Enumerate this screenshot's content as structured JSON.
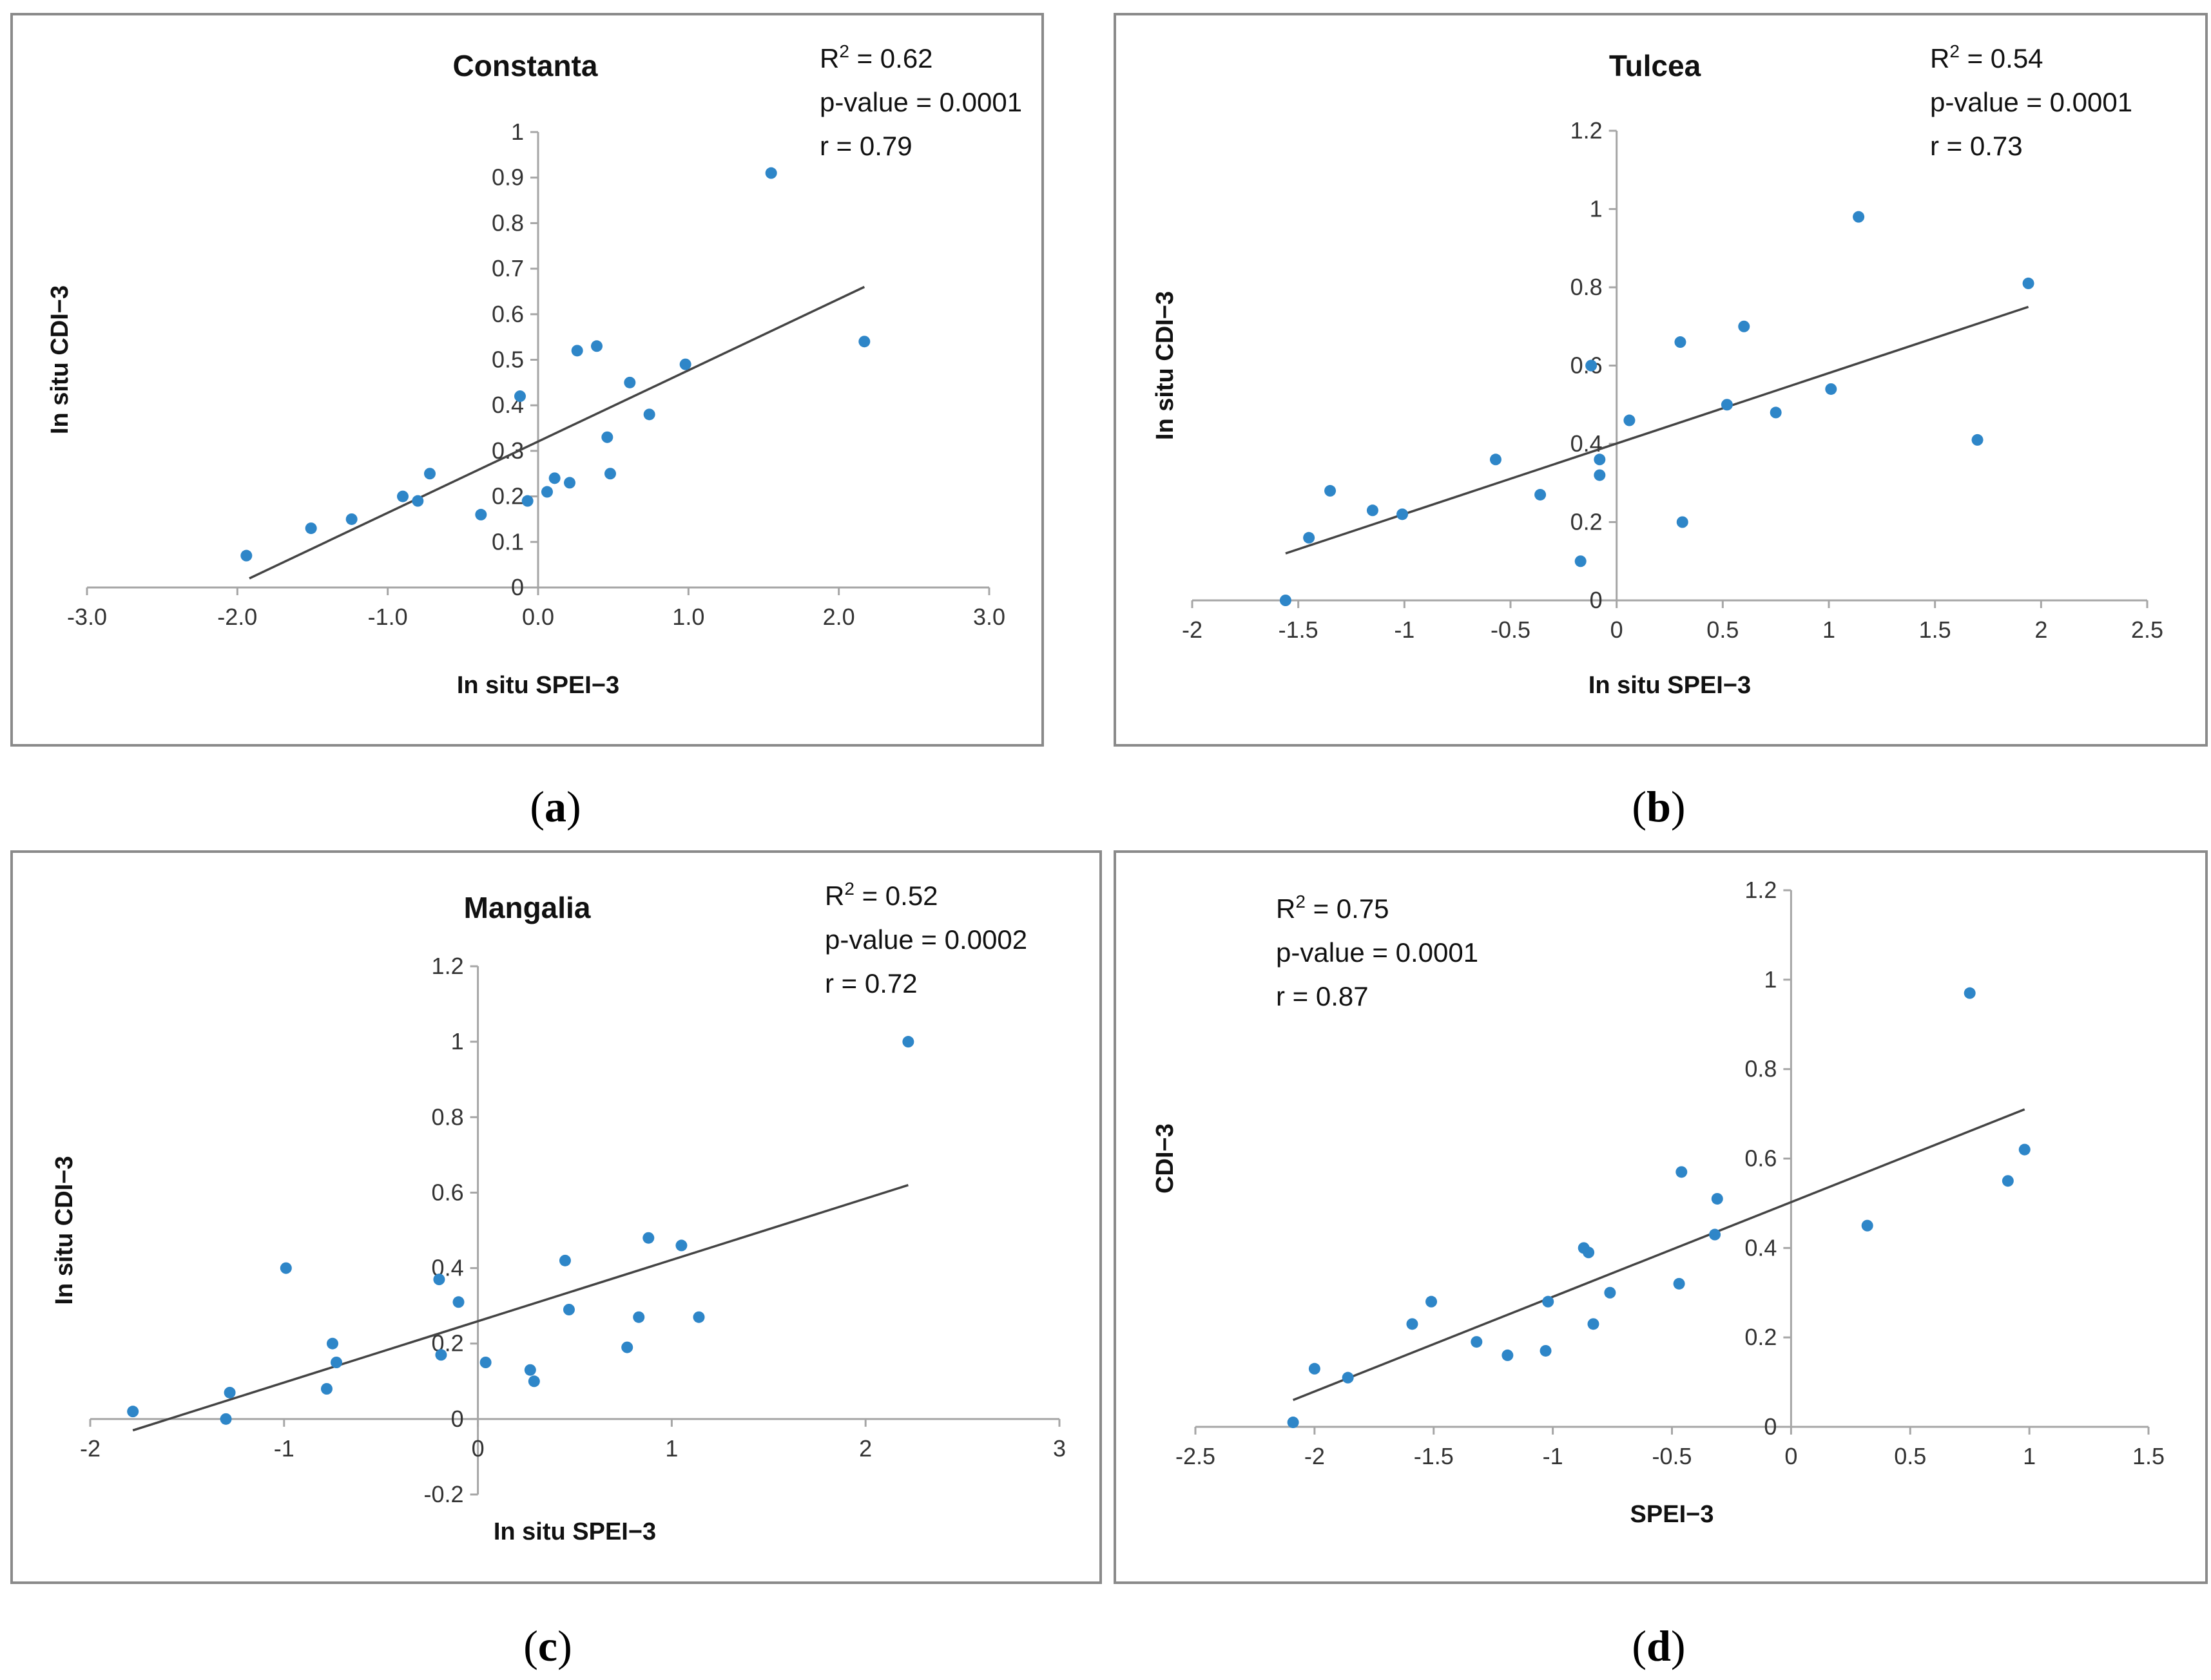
{
  "chart_data": [
    {
      "type": "scatter",
      "panel_label": "a",
      "title": "Constanta",
      "xlabel": "In situ SPEI−3",
      "ylabel": "In situ CDI−3",
      "xlim": [
        -3,
        3
      ],
      "ylim": [
        0,
        1
      ],
      "xticks": [
        -3,
        -2,
        -1,
        0,
        1,
        2,
        3
      ],
      "yticks": [
        0,
        0.1,
        0.2,
        0.3,
        0.4,
        0.5,
        0.6,
        0.7,
        0.8,
        0.9,
        1
      ],
      "xtick_labels": [
        "-3.0",
        "-2.0",
        "-1.0",
        "0.0",
        "1.0",
        "2.0",
        "3.0"
      ],
      "ytick_labels": [
        "0",
        "0.1",
        "0.2",
        "0.3",
        "0.4",
        "0.5",
        "0.6",
        "0.7",
        "0.8",
        "0.9",
        "1"
      ],
      "stats": [
        "R² = 0.62",
        "p-value = 0.0001",
        "r = 0.79"
      ],
      "x": [
        -1.94,
        -1.51,
        -1.24,
        -0.9,
        -0.8,
        -0.72,
        -0.38,
        -0.12,
        -0.07,
        0.06,
        0.11,
        0.21,
        0.26,
        0.39,
        0.46,
        0.48,
        0.61,
        0.74,
        0.98,
        1.55,
        2.17
      ],
      "y": [
        0.07,
        0.13,
        0.15,
        0.2,
        0.19,
        0.25,
        0.16,
        0.42,
        0.19,
        0.21,
        0.24,
        0.23,
        0.52,
        0.53,
        0.33,
        0.25,
        0.45,
        0.38,
        0.49,
        0.91,
        0.54
      ],
      "trendline": {
        "x": [
          -1.92,
          2.17
        ],
        "y": [
          0.02,
          0.66
        ]
      }
    },
    {
      "type": "scatter",
      "panel_label": "b",
      "title": "Tulcea",
      "xlabel": "In situ SPEI−3",
      "ylabel": "In situ CDI−3",
      "xlim": [
        -2,
        2.5
      ],
      "ylim": [
        0,
        1.2
      ],
      "xticks": [
        -2,
        -1.5,
        -1,
        -0.5,
        0,
        0.5,
        1,
        1.5,
        2,
        2.5
      ],
      "yticks": [
        0,
        0.2,
        0.4,
        0.6,
        0.8,
        1,
        1.2
      ],
      "xtick_labels": [
        "-2",
        "-1.5",
        "-1",
        "-0.5",
        "0",
        "0.5",
        "1",
        "1.5",
        "2",
        "2.5"
      ],
      "ytick_labels": [
        "0",
        "0.2",
        "0.4",
        "0.6",
        "0.8",
        "1",
        "1.2"
      ],
      "stats": [
        "R² = 0.54",
        "p-value = 0.0001",
        "r = 0.73"
      ],
      "x": [
        -1.56,
        -1.45,
        -1.35,
        -1.15,
        -1.01,
        -0.57,
        -0.36,
        -0.17,
        -0.12,
        -0.08,
        -0.08,
        0.06,
        0.3,
        0.31,
        0.52,
        0.6,
        0.75,
        1.01,
        1.14,
        1.7,
        1.94
      ],
      "y": [
        0.0,
        0.16,
        0.28,
        0.23,
        0.22,
        0.36,
        0.27,
        0.1,
        0.6,
        0.32,
        0.36,
        0.46,
        0.66,
        0.2,
        0.5,
        0.7,
        0.48,
        0.54,
        0.98,
        0.41,
        0.81
      ],
      "trendline": {
        "x": [
          -1.56,
          1.94
        ],
        "y": [
          0.12,
          0.75
        ]
      }
    },
    {
      "type": "scatter",
      "panel_label": "c",
      "title": "Mangalia",
      "xlabel": "In situ SPEI−3",
      "ylabel": "In situ CDI−3",
      "xlim": [
        -2,
        3
      ],
      "ylim": [
        -0.2,
        1.2
      ],
      "xticks": [
        -2,
        -1,
        0,
        1,
        2,
        3
      ],
      "yticks": [
        -0.2,
        0,
        0.2,
        0.4,
        0.6,
        0.8,
        1,
        1.2
      ],
      "xtick_labels": [
        "-2",
        "-1",
        "0",
        "1",
        "2",
        "3"
      ],
      "ytick_labels": [
        "-0.2",
        "0",
        "0.2",
        "0.4",
        "0.6",
        "0.8",
        "1",
        "1.2"
      ],
      "stats": [
        "R² = 0.52",
        "p-value = 0.0002",
        "r = 0.72"
      ],
      "x": [
        -1.78,
        -1.3,
        -1.28,
        -0.99,
        -0.78,
        -0.75,
        -0.73,
        -0.2,
        -0.19,
        -0.1,
        0.04,
        0.27,
        0.29,
        0.45,
        0.47,
        0.77,
        0.83,
        0.88,
        1.05,
        1.14,
        2.22
      ],
      "y": [
        0.02,
        0.0,
        0.07,
        0.4,
        0.08,
        0.2,
        0.15,
        0.37,
        0.17,
        0.31,
        0.15,
        0.13,
        0.1,
        0.42,
        0.29,
        0.19,
        0.27,
        0.48,
        0.46,
        0.27,
        1.0
      ],
      "trendline": {
        "x": [
          -1.78,
          2.22
        ],
        "y": [
          -0.03,
          0.62
        ]
      }
    },
    {
      "type": "scatter",
      "panel_label": "d",
      "title": "",
      "xlabel": "SPEI−3",
      "ylabel": "CDI−3",
      "xlim": [
        -2.5,
        1.5
      ],
      "ylim": [
        0,
        1.2
      ],
      "xticks": [
        -2.5,
        -2,
        -1.5,
        -1,
        -0.5,
        0,
        0.5,
        1,
        1.5
      ],
      "yticks": [
        0,
        0.2,
        0.4,
        0.6,
        0.8,
        1,
        1.2
      ],
      "xtick_labels": [
        "-2.5",
        "-2",
        "-1.5",
        "-1",
        "-0.5",
        "0",
        "0.5",
        "1",
        "1.5"
      ],
      "ytick_labels": [
        "0",
        "0.2",
        "0.4",
        "0.6",
        "0.8",
        "1",
        "1.2"
      ],
      "stats": [
        "R² = 0.75",
        "p-value = 0.0001",
        "r = 0.87"
      ],
      "x": [
        -2.09,
        -2.0,
        -1.86,
        -1.59,
        -1.51,
        -1.32,
        -1.19,
        -1.03,
        -1.02,
        -0.87,
        -0.85,
        -0.83,
        -0.76,
        -0.47,
        -0.46,
        -0.32,
        -0.31,
        0.32,
        0.75,
        0.91,
        0.98
      ],
      "y": [
        0.01,
        0.13,
        0.11,
        0.23,
        0.28,
        0.19,
        0.16,
        0.17,
        0.28,
        0.4,
        0.39,
        0.23,
        0.3,
        0.32,
        0.57,
        0.43,
        0.51,
        0.45,
        0.97,
        0.55,
        0.62
      ],
      "trendline": {
        "x": [
          -2.09,
          0.98
        ],
        "y": [
          0.06,
          0.71
        ]
      }
    }
  ]
}
